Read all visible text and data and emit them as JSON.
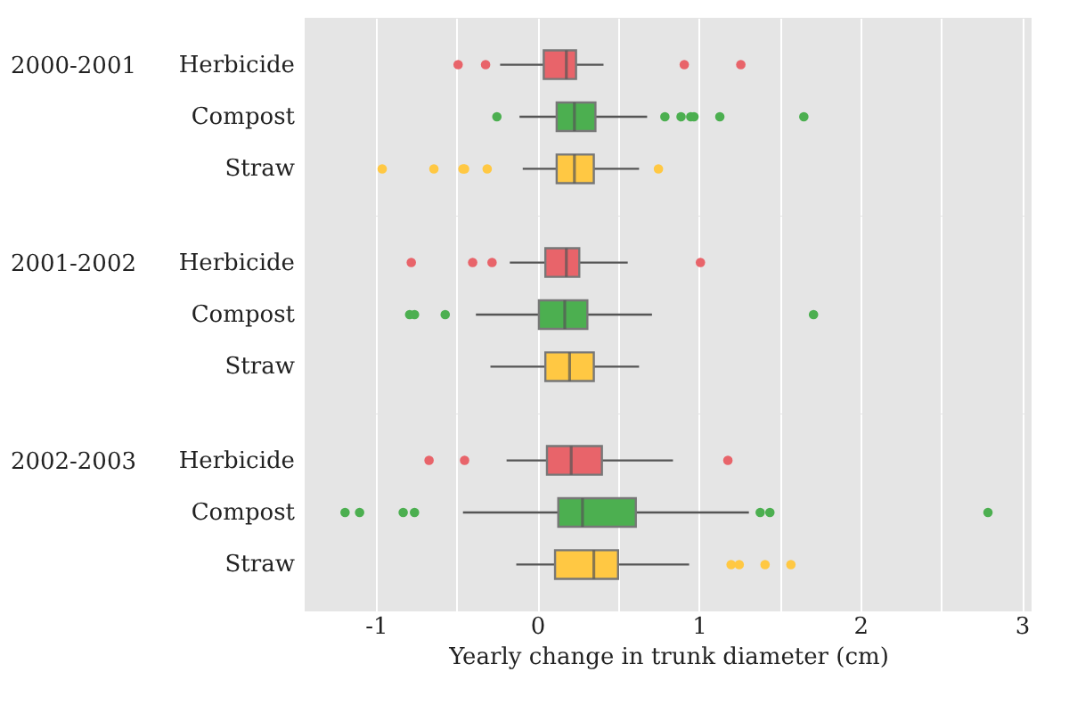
{
  "chart_data": [
    {
      "type": "box",
      "ylabel": "2000-2001",
      "orientation": "horizontal",
      "categories": [
        "Herbicide",
        "Compost",
        "Straw"
      ],
      "colors": [
        "#e8646a",
        "#4caf50",
        "#ffc843"
      ],
      "xlim": [
        -1.44,
        3.06
      ],
      "xticks": [
        {
          "value": -1,
          "label": null
        },
        {
          "value": -0.5,
          "label": null
        },
        {
          "value": 0,
          "label": null
        },
        {
          "value": 0.5,
          "label": null
        },
        {
          "value": 1,
          "label": null
        },
        {
          "value": 1.5,
          "label": null
        },
        {
          "value": 2,
          "label": null
        },
        {
          "value": 2.5,
          "label": null
        },
        {
          "value": 3,
          "label": null
        }
      ],
      "grid": "x",
      "tick_labels": "y",
      "boxes": [
        {
          "low": -0.23,
          "q1": 0.04,
          "median": 0.18,
          "q3": 0.24,
          "high": 0.41,
          "outliers": [
            -0.49,
            -0.32,
            0.91,
            1.26
          ]
        },
        {
          "low": -0.11,
          "q1": 0.12,
          "median": 0.23,
          "q3": 0.36,
          "high": 0.68,
          "outliers": [
            -0.25,
            0.79,
            0.89,
            0.95,
            0.97,
            1.13,
            1.65
          ]
        },
        {
          "low": -0.09,
          "q1": 0.12,
          "median": 0.23,
          "q3": 0.35,
          "high": 0.63,
          "outliers": [
            -0.96,
            -0.64,
            -0.46,
            -0.45,
            -0.31,
            0.75
          ]
        }
      ]
    },
    {
      "type": "box",
      "ylabel": "2001-2002",
      "orientation": "horizontal",
      "categories": [
        "Herbicide",
        "Compost",
        "Straw"
      ],
      "colors": [
        "#e8646a",
        "#4caf50",
        "#ffc843"
      ],
      "xlim": [
        -1.44,
        3.06
      ],
      "xticks": [
        {
          "value": -1,
          "label": null
        },
        {
          "value": -0.5,
          "label": null
        },
        {
          "value": 0,
          "label": null
        },
        {
          "value": 0.5,
          "label": null
        },
        {
          "value": 1,
          "label": null
        },
        {
          "value": 1.5,
          "label": null
        },
        {
          "value": 2,
          "label": null
        },
        {
          "value": 2.5,
          "label": null
        },
        {
          "value": 3,
          "label": null
        }
      ],
      "grid": "x",
      "tick_labels": "y",
      "boxes": [
        {
          "low": -0.17,
          "q1": 0.05,
          "median": 0.18,
          "q3": 0.26,
          "high": 0.56,
          "outliers": [
            -0.78,
            -0.4,
            -0.28,
            1.01
          ]
        },
        {
          "low": -0.38,
          "q1": 0.01,
          "median": 0.17,
          "q3": 0.31,
          "high": 0.71,
          "outliers": [
            -0.79,
            -0.76,
            -0.57,
            1.71
          ]
        },
        {
          "low": -0.29,
          "q1": 0.05,
          "median": 0.2,
          "q3": 0.35,
          "high": 0.63
        }
      ]
    },
    {
      "type": "box",
      "ylabel": "2002-2003",
      "xlabel": "Yearly change in trunk diameter (cm)",
      "orientation": "horizontal",
      "categories": [
        "Herbicide",
        "Compost",
        "Straw"
      ],
      "colors": [
        "#e8646a",
        "#4caf50",
        "#ffc843"
      ],
      "xlim": [
        -1.44,
        3.06
      ],
      "xticks": [
        {
          "value": -1,
          "label": "-1"
        },
        {
          "value": -0.5,
          "label": null
        },
        0,
        {
          "value": 0.5,
          "label": null
        },
        1,
        {
          "value": 1.5,
          "label": null
        },
        2,
        {
          "value": 2.5,
          "label": null
        },
        3
      ],
      "grid": "x",
      "boxes": [
        {
          "low": -0.19,
          "q1": 0.06,
          "median": 0.21,
          "q3": 0.4,
          "high": 0.84,
          "outliers": [
            -0.67,
            -0.45,
            1.18
          ]
        },
        {
          "low": -0.46,
          "q1": 0.13,
          "median": 0.28,
          "q3": 0.61,
          "high": 1.31,
          "outliers": [
            -1.19,
            -1.1,
            -0.83,
            -0.76,
            1.38,
            1.44,
            2.79
          ]
        },
        {
          "low": -0.13,
          "q1": 0.11,
          "median": 0.35,
          "q3": 0.5,
          "high": 0.94,
          "outliers": [
            1.2,
            1.25,
            1.41,
            1.57
          ]
        }
      ]
    }
  ]
}
